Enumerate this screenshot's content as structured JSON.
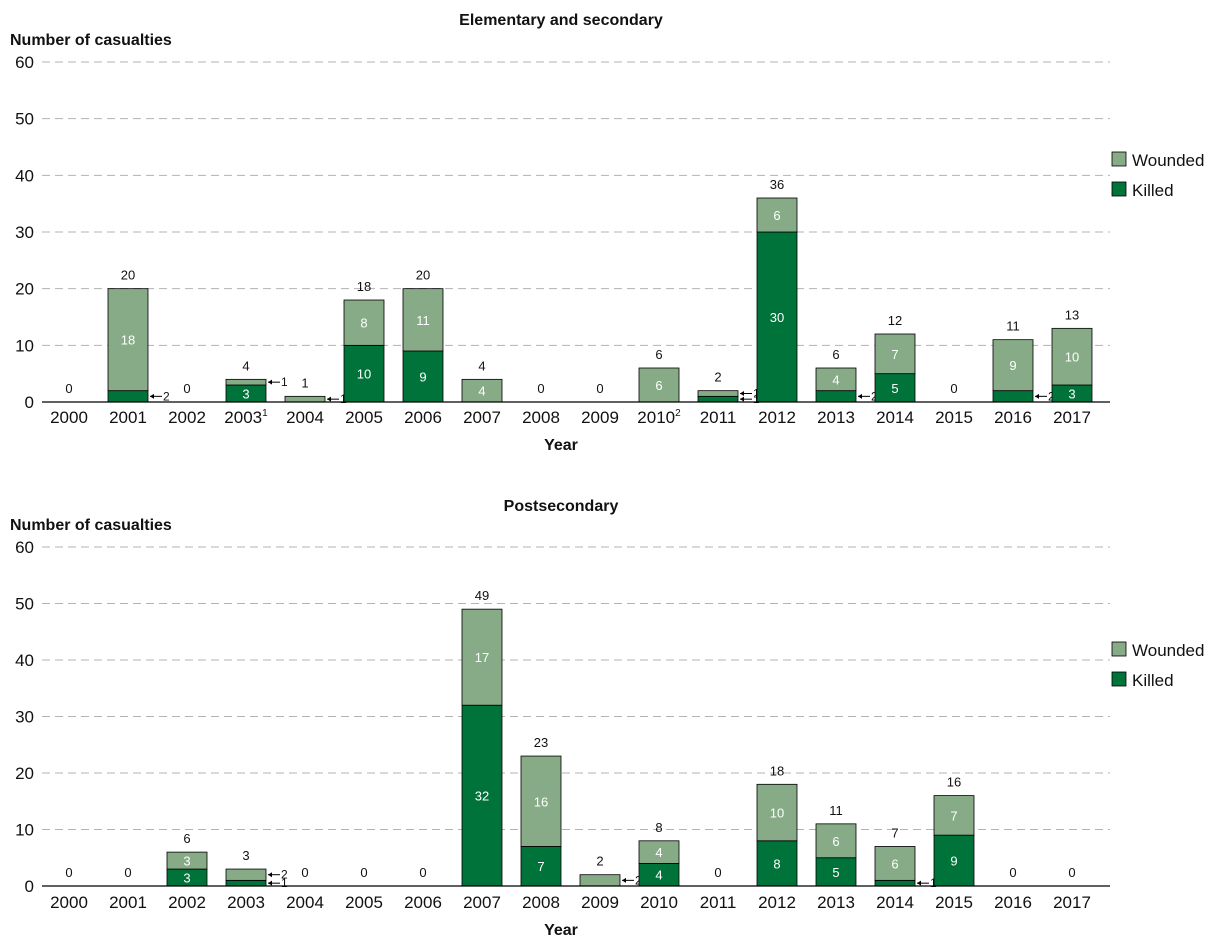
{
  "colors": {
    "wounded": "#86ab86",
    "killed": "#00733a"
  },
  "legend": {
    "wounded": "Wounded",
    "killed": "Killed"
  },
  "chart_data": [
    {
      "type": "bar",
      "stacked": true,
      "title": "Elementary and secondary",
      "ylabel": "Number of casualties",
      "xlabel": "Year",
      "ylim": [
        0,
        60
      ],
      "yticks": [
        0,
        10,
        20,
        30,
        40,
        50,
        60
      ],
      "grid": true,
      "legend_position": "right",
      "categories": [
        "2000",
        "2001",
        "2002",
        "2003",
        "2004",
        "2005",
        "2006",
        "2007",
        "2008",
        "2009",
        "2010",
        "2011",
        "2012",
        "2013",
        "2014",
        "2015",
        "2016",
        "2017"
      ],
      "category_footnotes": [
        "",
        "",
        "",
        "1",
        "",
        "",
        "",
        "",
        "",
        "",
        "2",
        "",
        "",
        "",
        "",
        "",
        "",
        ""
      ],
      "series": [
        {
          "name": "Killed",
          "values": [
            0,
            2,
            0,
            3,
            0,
            10,
            9,
            0,
            0,
            0,
            0,
            1,
            30,
            2,
            5,
            0,
            2,
            3
          ]
        },
        {
          "name": "Wounded",
          "values": [
            0,
            18,
            0,
            1,
            1,
            8,
            11,
            4,
            0,
            0,
            6,
            1,
            6,
            4,
            7,
            0,
            9,
            10
          ]
        }
      ],
      "totals": [
        0,
        20,
        0,
        4,
        1,
        18,
        20,
        4,
        0,
        0,
        6,
        2,
        36,
        6,
        12,
        0,
        11,
        13
      ]
    },
    {
      "type": "bar",
      "stacked": true,
      "title": "Postsecondary",
      "ylabel": "Number of casualties",
      "xlabel": "Year",
      "ylim": [
        0,
        60
      ],
      "yticks": [
        0,
        10,
        20,
        30,
        40,
        50,
        60
      ],
      "grid": true,
      "legend_position": "right",
      "categories": [
        "2000",
        "2001",
        "2002",
        "2003",
        "2004",
        "2005",
        "2006",
        "2007",
        "2008",
        "2009",
        "2010",
        "2011",
        "2012",
        "2013",
        "2014",
        "2015",
        "2016",
        "2017"
      ],
      "category_footnotes": [
        "",
        "",
        "",
        "",
        "",
        "",
        "",
        "",
        "",
        "",
        "",
        "",
        "",
        "",
        "",
        "",
        "",
        ""
      ],
      "series": [
        {
          "name": "Killed",
          "values": [
            0,
            0,
            3,
            1,
            0,
            0,
            0,
            32,
            7,
            0,
            4,
            0,
            8,
            5,
            1,
            9,
            0,
            0
          ]
        },
        {
          "name": "Wounded",
          "values": [
            0,
            0,
            3,
            2,
            0,
            0,
            0,
            17,
            16,
            2,
            4,
            0,
            10,
            6,
            6,
            7,
            0,
            0
          ]
        }
      ],
      "totals": [
        0,
        0,
        6,
        3,
        0,
        0,
        0,
        49,
        23,
        2,
        8,
        0,
        18,
        11,
        7,
        16,
        0,
        0
      ]
    }
  ]
}
